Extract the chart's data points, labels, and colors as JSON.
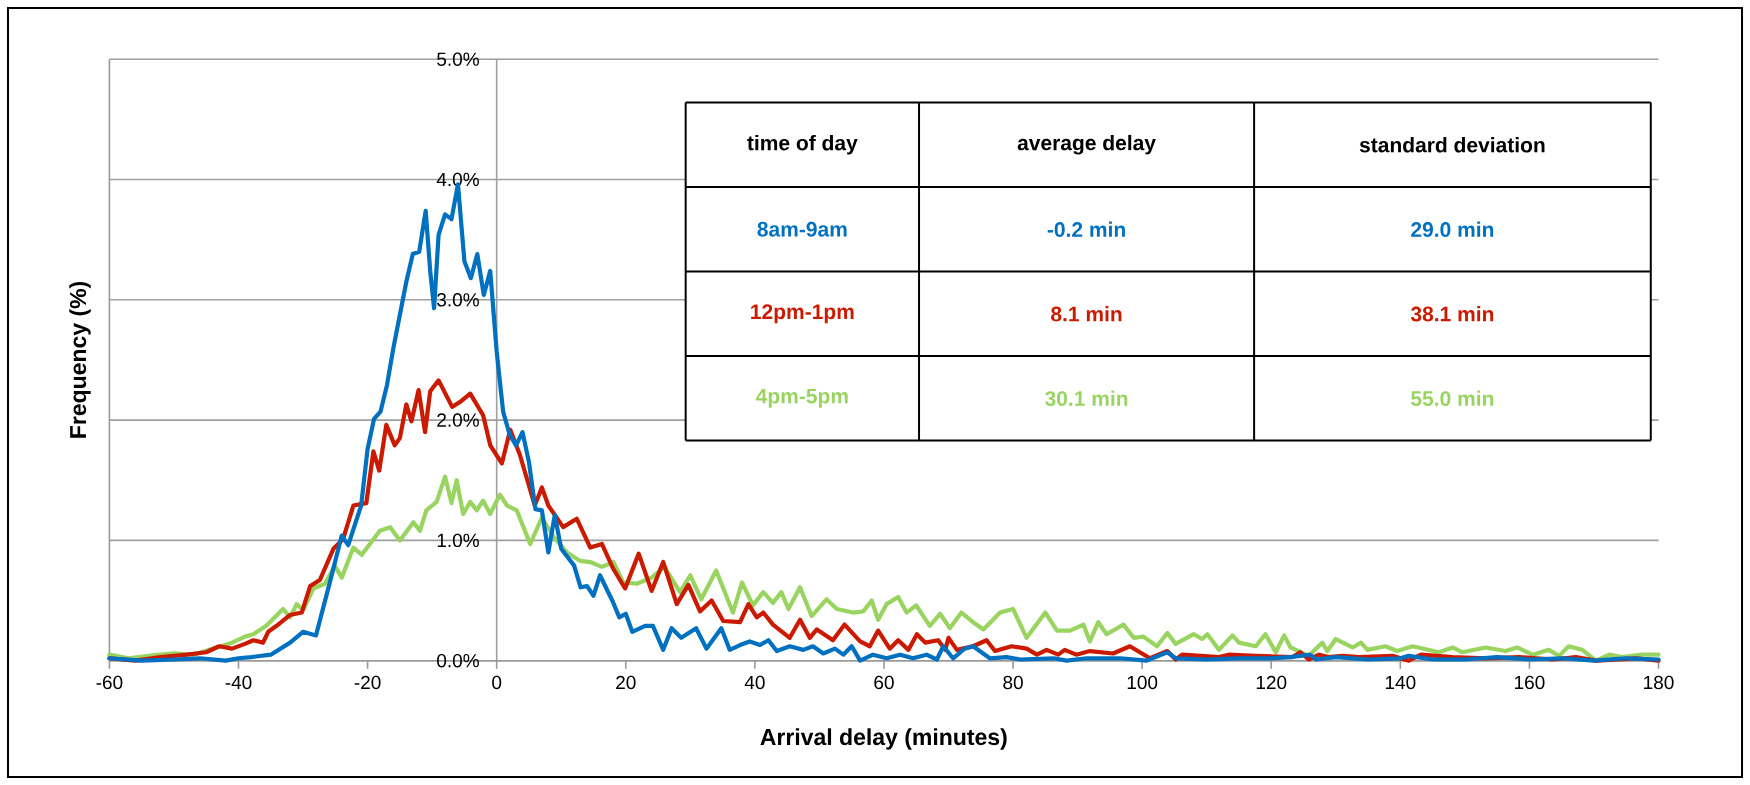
{
  "chart_data": {
    "type": "line",
    "xlabel": "Arrival delay (minutes)",
    "ylabel": "Frequency (%)",
    "xlim": [
      -60,
      180
    ],
    "xticks": [
      -60,
      -40,
      -20,
      0,
      20,
      40,
      60,
      80,
      100,
      120,
      140,
      160,
      180
    ],
    "ylim": [
      0,
      5
    ],
    "yticks": [
      {
        "value": 0,
        "label": "0.0%"
      },
      {
        "value": 1,
        "label": "1.0%"
      },
      {
        "value": 2,
        "label": "2.0%"
      },
      {
        "value": 3,
        "label": "3.0%"
      },
      {
        "value": 4,
        "label": "4.0%"
      },
      {
        "value": 5,
        "label": "5.0%"
      }
    ],
    "grid": "y",
    "legend": "top",
    "annotations": [
      "time of day",
      "average delay",
      "standard deviation",
      "-0.2 min",
      "29.0 min",
      "8.1 min",
      "38.1 min",
      "30.1 min",
      "55.0 min"
    ],
    "series": [
      {
        "name": "8am-9am",
        "color": "#0070c0",
        "x": [
          -60,
          -55,
          -50,
          -46,
          -42,
          -40,
          -38,
          -35,
          -32,
          -30,
          -28,
          -26,
          -24,
          -23,
          -21,
          -20,
          -19,
          -18,
          -17,
          -16,
          -14,
          -13,
          -12,
          -11,
          -10.3,
          -9.7,
          -9,
          -8,
          -7,
          -6,
          -5,
          -4,
          -3,
          -2,
          -1,
          0,
          1,
          2,
          3,
          4,
          5,
          6,
          7,
          8,
          9,
          10,
          12,
          13,
          14,
          15,
          16,
          18,
          19,
          20,
          21,
          23,
          24.2,
          25.8,
          27.1,
          28.6,
          30.9,
          32.5,
          34.8,
          36.1,
          37.7,
          39.2,
          40.8,
          42.1,
          43.4,
          45.4,
          47.5,
          49,
          50.6,
          52.4,
          53.7,
          55,
          56.3,
          58.3,
          60.4,
          62.5,
          64.5,
          66.6,
          68.2,
          69.2,
          70.7,
          72.5,
          73.8,
          76.4,
          79,
          81.1,
          86.3,
          88.3,
          91.4,
          96.6,
          100.7,
          103.9,
          105.2,
          110,
          115,
          120,
          123,
          126,
          127,
          130,
          135,
          140,
          141.3,
          145,
          150,
          155,
          160,
          165,
          170,
          175,
          180
        ],
        "values": [
          0.02,
          0,
          0.01,
          0.02,
          0,
          0.02,
          0.03,
          0.05,
          0.15,
          0.24,
          0.21,
          0.62,
          1.04,
          0.96,
          1.29,
          1.76,
          2.01,
          2.07,
          2.29,
          2.6,
          3.15,
          3.38,
          3.4,
          3.74,
          3.24,
          2.93,
          3.54,
          3.71,
          3.67,
          3.96,
          3.32,
          3.18,
          3.38,
          3.04,
          3.24,
          2.57,
          2.07,
          1.88,
          1.79,
          1.9,
          1.65,
          1.26,
          1.25,
          0.9,
          1.21,
          0.93,
          0.79,
          0.61,
          0.62,
          0.54,
          0.71,
          0.49,
          0.36,
          0.39,
          0.24,
          0.29,
          0.29,
          0.09,
          0.27,
          0.19,
          0.27,
          0.1,
          0.27,
          0.09,
          0.13,
          0.16,
          0.13,
          0.17,
          0.08,
          0.12,
          0.09,
          0.12,
          0.06,
          0.1,
          0.05,
          0.12,
          0,
          0.05,
          0.02,
          0.05,
          0.02,
          0.05,
          0.01,
          0.12,
          0.02,
          0.1,
          0.12,
          0.02,
          0.03,
          0.01,
          0.02,
          0,
          0.02,
          0.02,
          0,
          0.07,
          0.02,
          0.01,
          0.02,
          0.02,
          0.03,
          0.05,
          0.01,
          0.03,
          0.01,
          0.02,
          0.04,
          0.01,
          0.01,
          0.03,
          0.01,
          0.02,
          0,
          0.02,
          0.01
        ]
      },
      {
        "name": "12pm-1pm",
        "color": "#cc1a00",
        "x": [
          -60,
          -56,
          -52,
          -48,
          -45,
          -43,
          -41,
          -39,
          -37.7,
          -36.2,
          -35.4,
          -34.1,
          -32,
          -30.2,
          -28.9,
          -27.4,
          -25.3,
          -23.8,
          -22.2,
          -20.2,
          -19.1,
          -18.2,
          -17.1,
          -15.8,
          -15,
          -14,
          -13.2,
          -12.1,
          -11.1,
          -10.3,
          -9,
          -6.9,
          -5.7,
          -4.1,
          -2.1,
          -1,
          0.8,
          2.1,
          3.6,
          5.9,
          7,
          8,
          10.3,
          12.4,
          14.5,
          16.3,
          18.1,
          19.9,
          22,
          24,
          25.8,
          27.9,
          29.7,
          31.5,
          33.3,
          35.1,
          37.7,
          39,
          40.3,
          41.3,
          42.8,
          45.4,
          47,
          48.5,
          49.6,
          52.1,
          53.9,
          56.3,
          57.8,
          59.1,
          60.9,
          62.2,
          63.8,
          65.1,
          66.4,
          68.4,
          69.5,
          70,
          71.3,
          73.8,
          75.9,
          77.2,
          79.8,
          82.1,
          83.7,
          85.2,
          87,
          88,
          89.8,
          91.9,
          95.5,
          98.1,
          101.2,
          103.9,
          105.2,
          106.2,
          111.9,
          113.4,
          117.6,
          123.3,
          124.5,
          125.8,
          127.4,
          128.9,
          131,
          133.6,
          138.8,
          141.3,
          143.2,
          148.1,
          153.2,
          158.4,
          163.6,
          167.2,
          170.3,
          173.9,
          176.5,
          180
        ],
        "values": [
          0.02,
          0,
          0.03,
          0.05,
          0.07,
          0.12,
          0.1,
          0.14,
          0.17,
          0.15,
          0.24,
          0.29,
          0.38,
          0.4,
          0.62,
          0.67,
          0.93,
          1.01,
          1.29,
          1.31,
          1.74,
          1.58,
          1.96,
          1.79,
          1.85,
          2.13,
          1.99,
          2.25,
          1.9,
          2.24,
          2.33,
          2.11,
          2.15,
          2.22,
          2.04,
          1.79,
          1.64,
          1.92,
          1.71,
          1.29,
          1.44,
          1.29,
          1.11,
          1.18,
          0.94,
          0.97,
          0.76,
          0.6,
          0.89,
          0.58,
          0.82,
          0.47,
          0.63,
          0.41,
          0.5,
          0.33,
          0.32,
          0.47,
          0.36,
          0.4,
          0.3,
          0.19,
          0.34,
          0.19,
          0.26,
          0.17,
          0.3,
          0.16,
          0.12,
          0.25,
          0.1,
          0.17,
          0.09,
          0.22,
          0.15,
          0.17,
          0.09,
          0.19,
          0.09,
          0.12,
          0.17,
          0.08,
          0.12,
          0.1,
          0.05,
          0.09,
          0.05,
          0.09,
          0.05,
          0.08,
          0.06,
          0.12,
          0.02,
          0.08,
          0.01,
          0.05,
          0.03,
          0.05,
          0.04,
          0.03,
          0.07,
          0.01,
          0.05,
          0.03,
          0.04,
          0.03,
          0.04,
          0,
          0.05,
          0.03,
          0.02,
          0.03,
          0.01,
          0.03,
          0,
          0.01,
          0.02,
          0
        ]
      },
      {
        "name": "4pm-5pm",
        "color": "#99d460",
        "x": [
          -60,
          -57,
          -54,
          -50,
          -47,
          -44,
          -41,
          -39,
          -37.7,
          -35.7,
          -33.1,
          -32,
          -31,
          -30,
          -28.4,
          -26.6,
          -25.1,
          -24,
          -22.2,
          -20.9,
          -18.1,
          -16.5,
          -15,
          -12.9,
          -11.9,
          -10.9,
          -9.3,
          -8,
          -7,
          -6.2,
          -5.2,
          -4.1,
          -3.1,
          -2.1,
          -1,
          0.5,
          1.6,
          3.1,
          5.2,
          7,
          8.8,
          10.9,
          12.9,
          14.5,
          16.3,
          18.1,
          19.6,
          21.7,
          24,
          26,
          28.4,
          30,
          31.7,
          34,
          36.6,
          38,
          39.7,
          41.3,
          42.8,
          44.1,
          45.2,
          47,
          48.8,
          51.1,
          52.7,
          55.2,
          56.8,
          58.1,
          59.1,
          60.4,
          62.2,
          63.5,
          65,
          67.1,
          68.7,
          70.2,
          72,
          73.8,
          75.4,
          78,
          80,
          82.1,
          85,
          86.8,
          88.8,
          90.9,
          91.9,
          93.2,
          94.5,
          97.1,
          98.7,
          100.2,
          102.3,
          103.9,
          105.2,
          108,
          109.3,
          110.1,
          111.9,
          114,
          115,
          117.6,
          119.1,
          120.7,
          122,
          123,
          125.8,
          127.9,
          128.7,
          130,
          132.6,
          133.9,
          134.9,
          137.7,
          139.5,
          141.9,
          146,
          148.1,
          149.6,
          153.2,
          156.3,
          158.1,
          160.5,
          163,
          164.6,
          166.1,
          168.2,
          170.3,
          172.4,
          174.4,
          177.5,
          180
        ],
        "values": [
          0.05,
          0.02,
          0.04,
          0.06,
          0.05,
          0.1,
          0.15,
          0.2,
          0.22,
          0.29,
          0.43,
          0.36,
          0.47,
          0.42,
          0.6,
          0.64,
          0.79,
          0.69,
          0.94,
          0.88,
          1.08,
          1.11,
          1,
          1.15,
          1.08,
          1.25,
          1.32,
          1.53,
          1.31,
          1.5,
          1.22,
          1.32,
          1.25,
          1.33,
          1.22,
          1.38,
          1.29,
          1.25,
          0.97,
          1.19,
          1.03,
          0.9,
          0.83,
          0.82,
          0.78,
          0.82,
          0.65,
          0.64,
          0.69,
          0.78,
          0.57,
          0.71,
          0.51,
          0.75,
          0.4,
          0.65,
          0.46,
          0.57,
          0.48,
          0.57,
          0.43,
          0.61,
          0.37,
          0.51,
          0.43,
          0.4,
          0.41,
          0.5,
          0.34,
          0.47,
          0.53,
          0.4,
          0.46,
          0.29,
          0.39,
          0.27,
          0.4,
          0.32,
          0.26,
          0.4,
          0.43,
          0.19,
          0.4,
          0.25,
          0.25,
          0.3,
          0.16,
          0.32,
          0.22,
          0.3,
          0.19,
          0.2,
          0.12,
          0.23,
          0.14,
          0.22,
          0.18,
          0.22,
          0.09,
          0.21,
          0.15,
          0.12,
          0.22,
          0.07,
          0.21,
          0.11,
          0.04,
          0.15,
          0.08,
          0.18,
          0.11,
          0.15,
          0.09,
          0.12,
          0.08,
          0.12,
          0.07,
          0.11,
          0.07,
          0.11,
          0.08,
          0.11,
          0.05,
          0.09,
          0.04,
          0.12,
          0.09,
          0,
          0.05,
          0.03,
          0.05,
          0.05
        ]
      }
    ]
  }
}
